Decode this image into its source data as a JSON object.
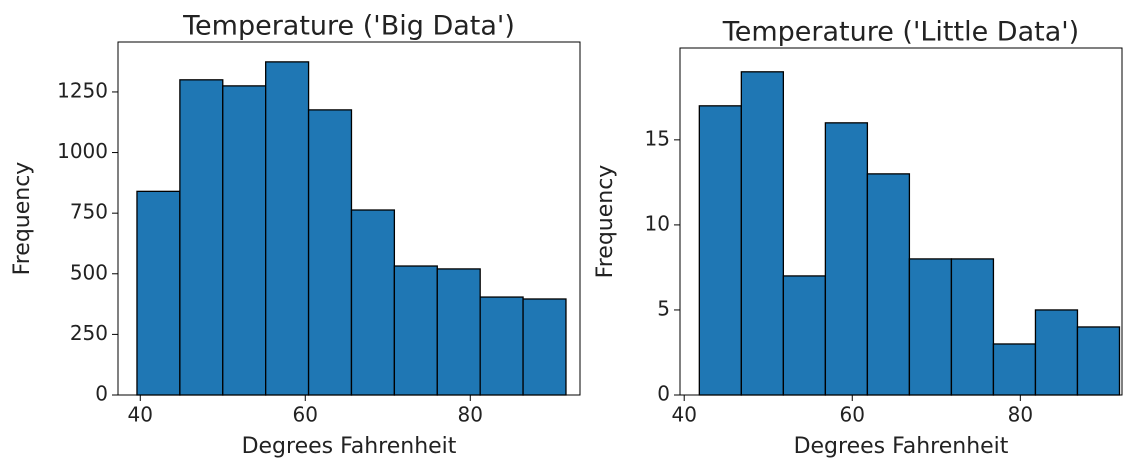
{
  "chart_data": [
    {
      "type": "histogram",
      "title": "Temperature ('Big Data')",
      "x_label": "Degrees Fahrenheit",
      "y_label": "Frequency",
      "bins": [
        39.6,
        44.8,
        50.0,
        55.2,
        60.4,
        65.6,
        70.8,
        76.0,
        81.2,
        86.4,
        91.6
      ],
      "values": [
        840,
        1300,
        1275,
        1374,
        1176,
        763,
        532,
        520,
        404,
        396
      ],
      "color": "#1f77b4",
      "edgecolor": "#000000",
      "xlim": [
        37.3,
        93.3
      ],
      "ylim": [
        0,
        1456
      ],
      "xticks": [
        40,
        60,
        80
      ],
      "yticks": [
        0,
        250,
        500,
        750,
        1000,
        1250
      ]
    },
    {
      "type": "histogram",
      "title": "Temperature ('Little Data')",
      "x_label": "Degrees Fahrenheit",
      "y_label": "Frequency",
      "bins": [
        41.8,
        46.8,
        51.8,
        56.8,
        61.8,
        66.8,
        71.8,
        76.8,
        81.8,
        86.8,
        91.8
      ],
      "values": [
        17,
        19,
        7,
        16,
        13,
        8,
        8,
        3,
        5,
        4
      ],
      "color": "#1f77b4",
      "edgecolor": "#000000",
      "xlim": [
        39.5,
        92.1
      ],
      "ylim": [
        0,
        20.4
      ],
      "xticks": [
        40,
        60,
        80
      ],
      "yticks": [
        0,
        5,
        10,
        15
      ]
    }
  ]
}
